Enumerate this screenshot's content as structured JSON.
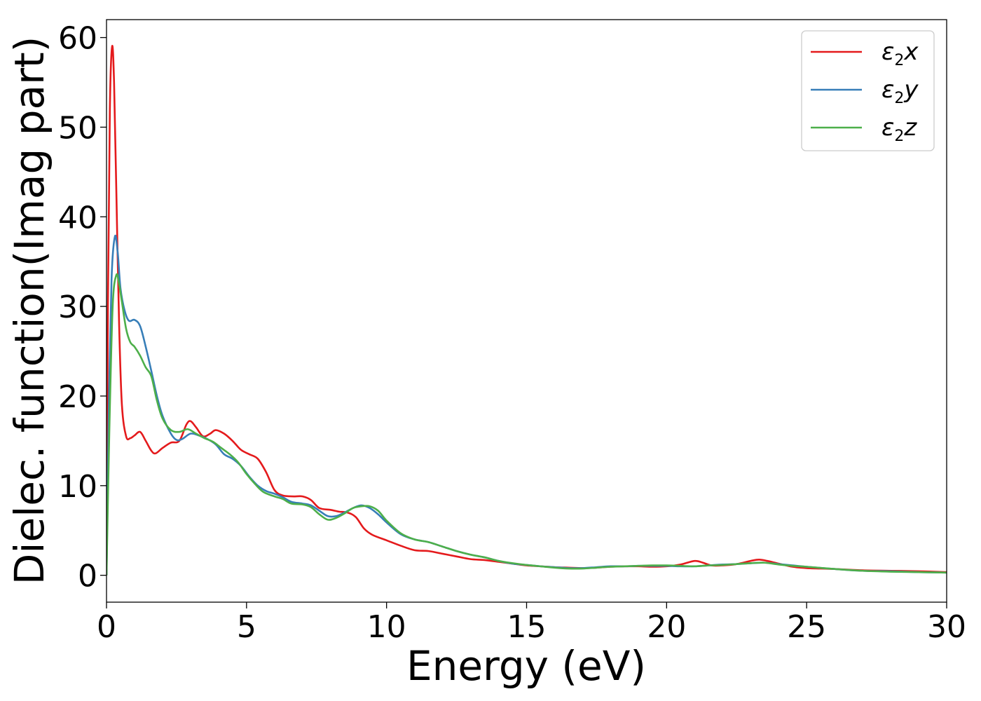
{
  "chart_data": {
    "type": "line",
    "xlabel": "Energy (eV)",
    "ylabel": "Dielec. function(Imag part)",
    "xlim": [
      0,
      30
    ],
    "ylim": [
      -3,
      62
    ],
    "xticks": [
      0,
      5,
      10,
      15,
      20,
      25,
      30
    ],
    "yticks": [
      0,
      10,
      20,
      30,
      40,
      50,
      60
    ],
    "grid": false,
    "legend_position": "top-right",
    "series": [
      {
        "name": "ε₂x",
        "legend": {
          "base": "ε",
          "sub": "2",
          "var": "x"
        },
        "color": "#e41a1c",
        "points": [
          [
            0,
            0
          ],
          [
            0.05,
            30
          ],
          [
            0.12,
            52
          ],
          [
            0.2,
            59
          ],
          [
            0.27,
            55
          ],
          [
            0.35,
            43
          ],
          [
            0.45,
            28
          ],
          [
            0.55,
            19
          ],
          [
            0.7,
            15.5
          ],
          [
            0.85,
            15.3
          ],
          [
            1.0,
            15.6
          ],
          [
            1.2,
            16.0
          ],
          [
            1.4,
            15.0
          ],
          [
            1.6,
            13.9
          ],
          [
            1.75,
            13.6
          ],
          [
            2.0,
            14.2
          ],
          [
            2.3,
            14.8
          ],
          [
            2.6,
            15.0
          ],
          [
            2.85,
            16.8
          ],
          [
            3.0,
            17.2
          ],
          [
            3.2,
            16.5
          ],
          [
            3.45,
            15.5
          ],
          [
            3.7,
            15.8
          ],
          [
            3.9,
            16.2
          ],
          [
            4.2,
            15.8
          ],
          [
            4.5,
            15.0
          ],
          [
            4.8,
            14.0
          ],
          [
            5.1,
            13.5
          ],
          [
            5.4,
            13.0
          ],
          [
            5.7,
            11.5
          ],
          [
            6.0,
            9.5
          ],
          [
            6.3,
            8.9
          ],
          [
            6.7,
            8.8
          ],
          [
            7.0,
            8.8
          ],
          [
            7.3,
            8.4
          ],
          [
            7.6,
            7.5
          ],
          [
            8.0,
            7.3
          ],
          [
            8.3,
            7.1
          ],
          [
            8.6,
            7.0
          ],
          [
            8.9,
            6.5
          ],
          [
            9.2,
            5.2
          ],
          [
            9.5,
            4.5
          ],
          [
            10.0,
            3.9
          ],
          [
            10.5,
            3.3
          ],
          [
            11.0,
            2.8
          ],
          [
            11.5,
            2.7
          ],
          [
            12.0,
            2.4
          ],
          [
            12.5,
            2.1
          ],
          [
            13.0,
            1.8
          ],
          [
            13.5,
            1.7
          ],
          [
            14.0,
            1.5
          ],
          [
            14.5,
            1.3
          ],
          [
            15.0,
            1.1
          ],
          [
            15.5,
            1.0
          ],
          [
            16.0,
            0.9
          ],
          [
            16.5,
            0.85
          ],
          [
            17.0,
            0.8
          ],
          [
            17.5,
            0.85
          ],
          [
            18.0,
            0.95
          ],
          [
            18.5,
            1.0
          ],
          [
            19.0,
            1.0
          ],
          [
            19.5,
            0.95
          ],
          [
            20.0,
            1.0
          ],
          [
            20.5,
            1.2
          ],
          [
            21.0,
            1.6
          ],
          [
            21.3,
            1.4
          ],
          [
            21.6,
            1.1
          ],
          [
            22.0,
            1.1
          ],
          [
            22.5,
            1.25
          ],
          [
            23.0,
            1.6
          ],
          [
            23.3,
            1.75
          ],
          [
            23.6,
            1.6
          ],
          [
            24.0,
            1.3
          ],
          [
            24.5,
            0.95
          ],
          [
            25.0,
            0.8
          ],
          [
            26.0,
            0.7
          ],
          [
            27.0,
            0.55
          ],
          [
            28.0,
            0.5
          ],
          [
            29.0,
            0.45
          ],
          [
            30.0,
            0.35
          ]
        ]
      },
      {
        "name": "ε₂y",
        "legend": {
          "base": "ε",
          "sub": "2",
          "var": "y"
        },
        "color": "#377eb8",
        "points": [
          [
            0,
            0
          ],
          [
            0.08,
            18
          ],
          [
            0.18,
            33
          ],
          [
            0.3,
            37.8
          ],
          [
            0.4,
            36
          ],
          [
            0.5,
            32
          ],
          [
            0.65,
            29.5
          ],
          [
            0.8,
            28.4
          ],
          [
            1.0,
            28.5
          ],
          [
            1.2,
            27.8
          ],
          [
            1.4,
            25.5
          ],
          [
            1.6,
            22.8
          ],
          [
            1.8,
            20.0
          ],
          [
            2.0,
            17.8
          ],
          [
            2.3,
            15.8
          ],
          [
            2.5,
            15.1
          ],
          [
            2.7,
            15.2
          ],
          [
            3.0,
            15.8
          ],
          [
            3.3,
            15.6
          ],
          [
            3.6,
            15.2
          ],
          [
            3.9,
            14.6
          ],
          [
            4.2,
            13.5
          ],
          [
            4.5,
            13.0
          ],
          [
            4.8,
            12.2
          ],
          [
            5.1,
            11.0
          ],
          [
            5.4,
            10.0
          ],
          [
            5.7,
            9.4
          ],
          [
            6.0,
            9.1
          ],
          [
            6.3,
            8.7
          ],
          [
            6.6,
            8.2
          ],
          [
            7.0,
            8.0
          ],
          [
            7.3,
            7.8
          ],
          [
            7.6,
            7.2
          ],
          [
            7.9,
            6.6
          ],
          [
            8.2,
            6.6
          ],
          [
            8.5,
            7.0
          ],
          [
            8.8,
            7.5
          ],
          [
            9.1,
            7.8
          ],
          [
            9.4,
            7.5
          ],
          [
            9.7,
            6.8
          ],
          [
            10.0,
            5.9
          ],
          [
            10.5,
            4.6
          ],
          [
            11.0,
            4.0
          ],
          [
            11.5,
            3.7
          ],
          [
            12.0,
            3.2
          ],
          [
            12.5,
            2.7
          ],
          [
            13.0,
            2.3
          ],
          [
            13.5,
            2.0
          ],
          [
            14.0,
            1.6
          ],
          [
            14.5,
            1.3
          ],
          [
            15.0,
            1.15
          ],
          [
            15.5,
            1.0
          ],
          [
            16.0,
            0.9
          ],
          [
            16.5,
            0.8
          ],
          [
            17.0,
            0.8
          ],
          [
            17.5,
            0.9
          ],
          [
            18.0,
            1.0
          ],
          [
            18.5,
            1.0
          ],
          [
            19.0,
            1.05
          ],
          [
            19.5,
            1.05
          ],
          [
            20.0,
            1.05
          ],
          [
            20.5,
            1.0
          ],
          [
            21.0,
            1.0
          ],
          [
            21.5,
            1.1
          ],
          [
            22.0,
            1.2
          ],
          [
            22.5,
            1.25
          ],
          [
            23.0,
            1.35
          ],
          [
            23.5,
            1.4
          ],
          [
            24.0,
            1.25
          ],
          [
            24.5,
            1.1
          ],
          [
            25.0,
            0.95
          ],
          [
            26.0,
            0.7
          ],
          [
            27.0,
            0.5
          ],
          [
            28.0,
            0.45
          ],
          [
            29.0,
            0.35
          ],
          [
            30.0,
            0.3
          ]
        ]
      },
      {
        "name": "ε₂z",
        "legend": {
          "base": "ε",
          "sub": "2",
          "var": "z"
        },
        "color": "#4daf4a",
        "points": [
          [
            0,
            0
          ],
          [
            0.1,
            16
          ],
          [
            0.22,
            30
          ],
          [
            0.35,
            33.5
          ],
          [
            0.45,
            32.5
          ],
          [
            0.55,
            30.5
          ],
          [
            0.7,
            27.5
          ],
          [
            0.85,
            26.0
          ],
          [
            1.0,
            25.5
          ],
          [
            1.2,
            24.5
          ],
          [
            1.4,
            23.2
          ],
          [
            1.6,
            22.2
          ],
          [
            1.8,
            19.5
          ],
          [
            2.0,
            17.5
          ],
          [
            2.3,
            16.2
          ],
          [
            2.6,
            16.0
          ],
          [
            2.9,
            16.3
          ],
          [
            3.2,
            15.8
          ],
          [
            3.5,
            15.3
          ],
          [
            3.8,
            14.9
          ],
          [
            4.1,
            14.2
          ],
          [
            4.4,
            13.5
          ],
          [
            4.7,
            12.6
          ],
          [
            5.0,
            11.3
          ],
          [
            5.3,
            10.2
          ],
          [
            5.6,
            9.3
          ],
          [
            6.0,
            8.8
          ],
          [
            6.3,
            8.5
          ],
          [
            6.6,
            8.0
          ],
          [
            7.0,
            7.9
          ],
          [
            7.3,
            7.6
          ],
          [
            7.6,
            6.8
          ],
          [
            7.9,
            6.2
          ],
          [
            8.2,
            6.4
          ],
          [
            8.5,
            6.9
          ],
          [
            8.8,
            7.5
          ],
          [
            9.1,
            7.7
          ],
          [
            9.4,
            7.7
          ],
          [
            9.7,
            7.2
          ],
          [
            10.0,
            6.1
          ],
          [
            10.5,
            4.7
          ],
          [
            11.0,
            4.0
          ],
          [
            11.5,
            3.7
          ],
          [
            12.0,
            3.2
          ],
          [
            12.5,
            2.7
          ],
          [
            13.0,
            2.3
          ],
          [
            13.5,
            2.0
          ],
          [
            14.0,
            1.6
          ],
          [
            14.5,
            1.35
          ],
          [
            15.0,
            1.15
          ],
          [
            15.5,
            1.0
          ],
          [
            16.0,
            0.85
          ],
          [
            16.5,
            0.75
          ],
          [
            17.0,
            0.75
          ],
          [
            17.5,
            0.85
          ],
          [
            18.0,
            0.95
          ],
          [
            18.5,
            1.0
          ],
          [
            19.0,
            1.05
          ],
          [
            19.5,
            1.1
          ],
          [
            20.0,
            1.1
          ],
          [
            20.5,
            1.05
          ],
          [
            21.0,
            1.0
          ],
          [
            21.5,
            1.1
          ],
          [
            22.0,
            1.15
          ],
          [
            22.5,
            1.25
          ],
          [
            23.0,
            1.35
          ],
          [
            23.5,
            1.4
          ],
          [
            24.0,
            1.2
          ],
          [
            24.5,
            1.05
          ],
          [
            25.0,
            0.95
          ],
          [
            26.0,
            0.7
          ],
          [
            27.0,
            0.5
          ],
          [
            28.0,
            0.4
          ],
          [
            29.0,
            0.35
          ],
          [
            30.0,
            0.3
          ]
        ]
      }
    ]
  }
}
